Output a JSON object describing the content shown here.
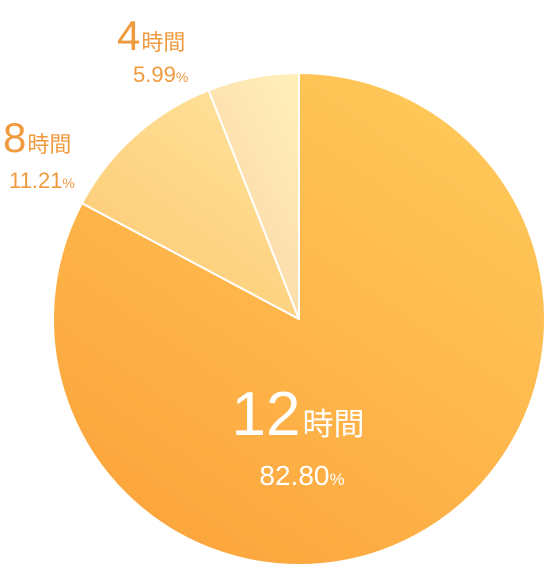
{
  "chart_data": {
    "type": "pie",
    "start": "top",
    "direction": "clockwise",
    "slices": [
      {
        "number": "12",
        "unit": "時間",
        "value": 82.8,
        "value_label": "82.80",
        "percent_sign": "%",
        "colors": [
          "#ffc95a",
          "#fca23a"
        ]
      },
      {
        "number": "8",
        "unit": "時間",
        "value": 11.21,
        "value_label": "11.21",
        "percent_sign": "%",
        "colors": [
          "#ffe29a",
          "#fcc871"
        ]
      },
      {
        "number": "4",
        "unit": "時間",
        "value": 5.99,
        "value_label": "5.99",
        "percent_sign": "%",
        "colors": [
          "#ffeeb7",
          "#fbd3a6"
        ]
      }
    ]
  },
  "colors": {
    "outside_label": "#f09a3e",
    "inside_label": "#ffffff",
    "divider": "#ffffff"
  }
}
